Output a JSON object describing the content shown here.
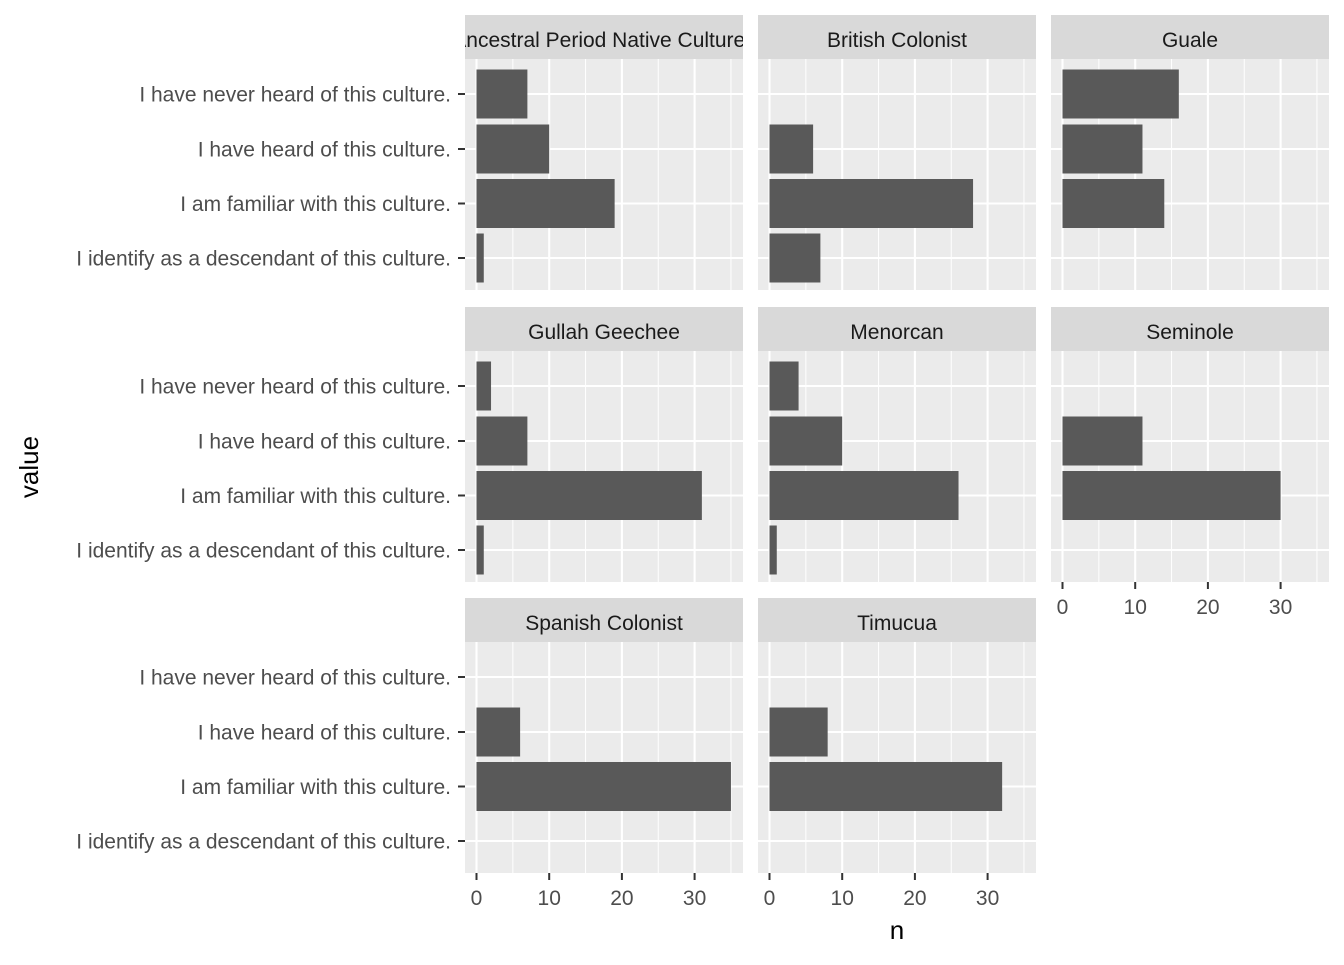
{
  "chart_data": {
    "type": "bar",
    "orientation": "horizontal",
    "facet_wrap": true,
    "xlabel": "n",
    "ylabel": "value",
    "xlim": [
      0,
      35
    ],
    "x_ticks": [
      0,
      10,
      20,
      30
    ],
    "categories": [
      "I have never heard of this culture.",
      "I have heard of this culture.",
      "I am familiar with this culture.",
      "I identify as a descendant of this culture."
    ],
    "panels": [
      {
        "name": "Ancestral Period Native Cultures",
        "values": [
          7,
          10,
          19,
          1
        ]
      },
      {
        "name": "British Colonist",
        "values": [
          0,
          6,
          28,
          7
        ]
      },
      {
        "name": "Guale",
        "values": [
          16,
          11,
          14,
          0
        ]
      },
      {
        "name": "Gullah Geechee",
        "values": [
          2,
          7,
          31,
          1
        ]
      },
      {
        "name": "Menorcan",
        "values": [
          4,
          10,
          26,
          1
        ]
      },
      {
        "name": "Seminole",
        "values": [
          0,
          11,
          30,
          0
        ]
      },
      {
        "name": "Spanish Colonist",
        "values": [
          0,
          6,
          35,
          0
        ]
      },
      {
        "name": "Timucua",
        "values": [
          0,
          8,
          32,
          0
        ]
      }
    ],
    "colors": {
      "bar": "#595959",
      "panel_background": "#ebebeb",
      "strip_background": "#d9d9d9",
      "grid": "#ffffff"
    },
    "grid": true,
    "legend": "none"
  }
}
